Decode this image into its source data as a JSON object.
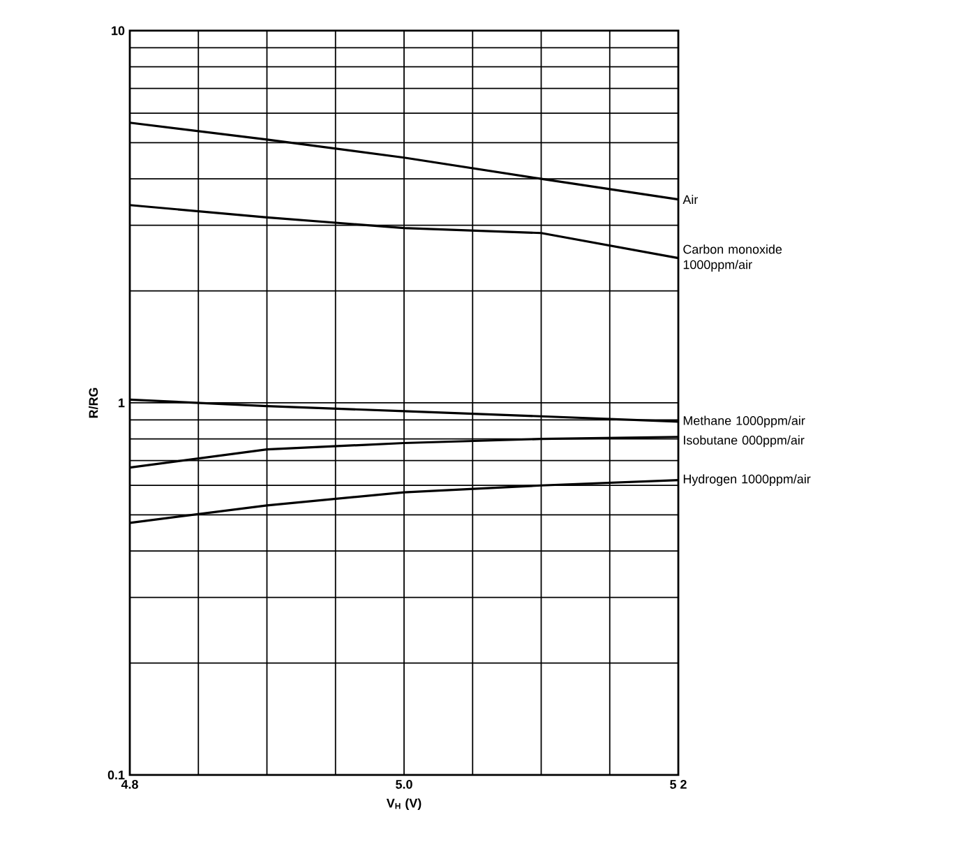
{
  "chart_data": {
    "type": "line",
    "xlabel": "V$_{H}$ (V)",
    "ylabel": "R/RG",
    "log": "y",
    "grid": true,
    "legend": false,
    "marker": "none",
    "line_style": "solid",
    "xlim": [
      4.8,
      5.2
    ],
    "ylim": [
      0.1,
      10
    ],
    "xticks": [
      {
        "value": 4.8,
        "label": "4.8"
      },
      {
        "value": 4.85,
        "label": null
      },
      {
        "value": 4.9,
        "label": null
      },
      {
        "value": 4.95,
        "label": null
      },
      {
        "value": 5.0,
        "label": "5.0"
      },
      {
        "value": 5.05,
        "label": null
      },
      {
        "value": 5.1,
        "label": null
      },
      {
        "value": 5.15,
        "label": null
      },
      {
        "value": 5.2,
        "label": "5 2"
      }
    ],
    "yticks": [
      0.1,
      {
        "value": 0.2,
        "label": null
      },
      {
        "value": 0.3,
        "label": null
      },
      {
        "value": 0.4,
        "label": null
      },
      {
        "value": 0.5,
        "label": null
      },
      {
        "value": 0.6,
        "label": null
      },
      {
        "value": 0.7,
        "label": null
      },
      {
        "value": 0.8,
        "label": null
      },
      {
        "value": 0.9,
        "label": null
      },
      1,
      {
        "value": 2,
        "label": null
      },
      {
        "value": 3,
        "label": null
      },
      {
        "value": 4,
        "label": null
      },
      {
        "value": 5,
        "label": null
      },
      {
        "value": 6,
        "label": null
      },
      {
        "value": 7,
        "label": null
      },
      {
        "value": 8,
        "label": null
      },
      {
        "value": 9,
        "label": null
      },
      10
    ],
    "x": [
      4.8,
      4.9,
      5.0,
      5.1,
      5.2
    ],
    "series": [
      {
        "name": "Air",
        "color": "#000000",
        "values": [
          5.66,
          5.1,
          4.56,
          4.0,
          3.52
        ]
      },
      {
        "name": "Carbon monoxide 1000ppm/air",
        "color": "#000000",
        "values": [
          3.4,
          3.15,
          2.95,
          2.86,
          2.45
        ]
      },
      {
        "name": "Methane 1000ppm/air",
        "color": "#000000",
        "values": [
          1.02,
          0.98,
          0.95,
          0.92,
          0.89
        ]
      },
      {
        "name": "Isobutane  000ppm/air",
        "color": "#000000",
        "values": [
          0.67,
          0.75,
          0.78,
          0.8,
          0.81
        ]
      },
      {
        "name": "Hydrogen 1000ppm/air",
        "color": "#000000",
        "values": [
          0.476,
          0.53,
          0.575,
          0.6,
          0.62
        ]
      }
    ]
  }
}
